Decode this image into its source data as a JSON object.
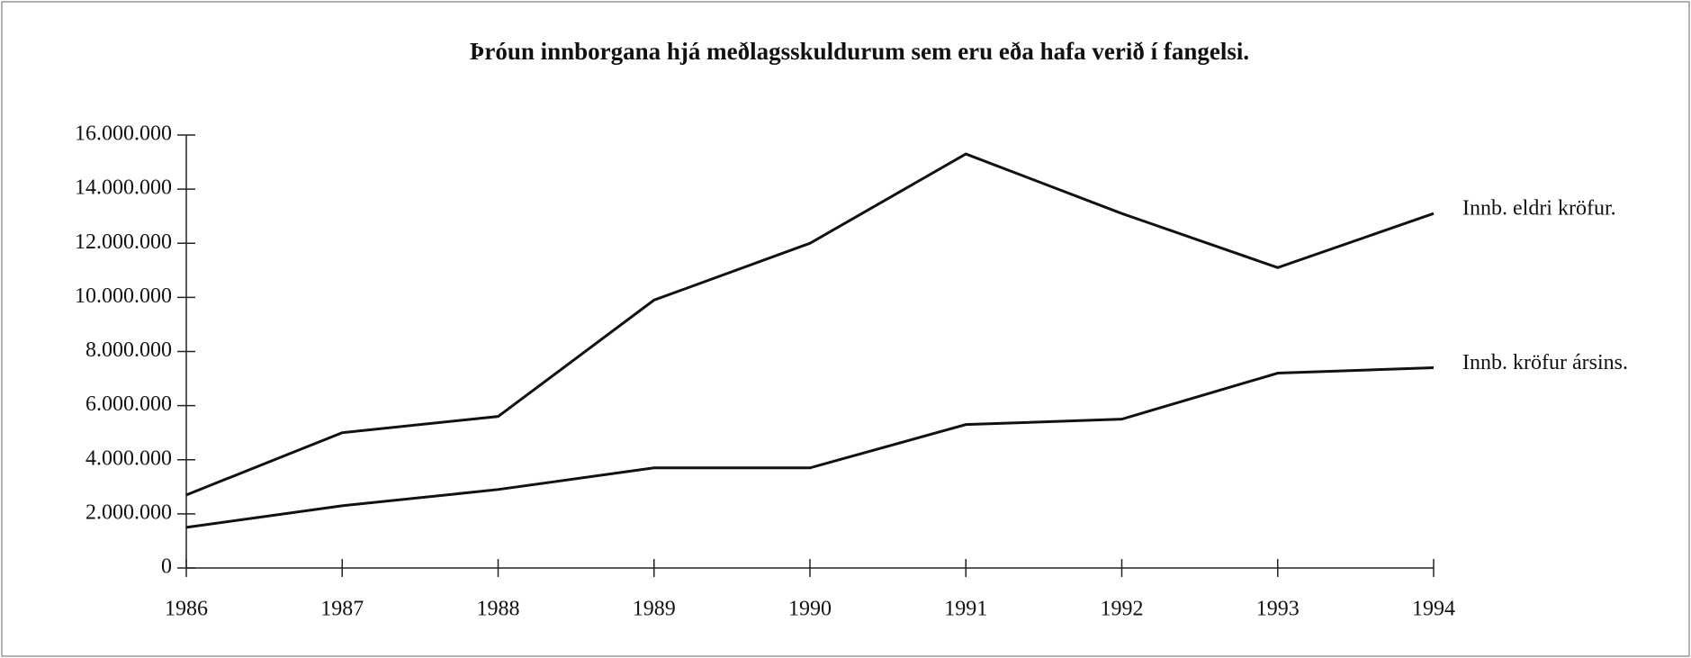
{
  "chart_data": {
    "type": "line",
    "title": "Þróun innborgana hjá meðlagsskuldurum sem eru eða hafa verið í fangelsi.",
    "x": [
      1986,
      1987,
      1988,
      1989,
      1990,
      1991,
      1992,
      1993,
      1994
    ],
    "xlim": [
      1986,
      1994
    ],
    "xticks": [
      1986,
      1987,
      1988,
      1989,
      1990,
      1991,
      1992,
      1993,
      1994
    ],
    "series": [
      {
        "name": "Innb. eldri kröfur.",
        "color": "#111111",
        "values": [
          2700000,
          5000000,
          5600000,
          9900000,
          12000000,
          15300000,
          13100000,
          11100000,
          13100000
        ]
      },
      {
        "name": "Innb. kröfur ársins.",
        "color": "#111111",
        "values": [
          1500000,
          2300000,
          2900000,
          3700000,
          3700000,
          5300000,
          5500000,
          7200000,
          7400000
        ]
      }
    ],
    "ylim": [
      0,
      16000000
    ],
    "yticks": [
      0,
      {
        "value": 2000000,
        "label": "2.000.000"
      },
      {
        "value": 4000000,
        "label": "4.000.000"
      },
      {
        "value": 6000000,
        "label": "6.000.000"
      },
      {
        "value": 8000000,
        "label": "8.000.000"
      },
      {
        "value": 10000000,
        "label": "10.000.000"
      },
      {
        "value": 12000000,
        "label": "12.000.000"
      },
      {
        "value": 14000000,
        "label": "14.000.000"
      },
      {
        "value": 16000000,
        "label": "16.000.000"
      }
    ],
    "grid": false
  }
}
